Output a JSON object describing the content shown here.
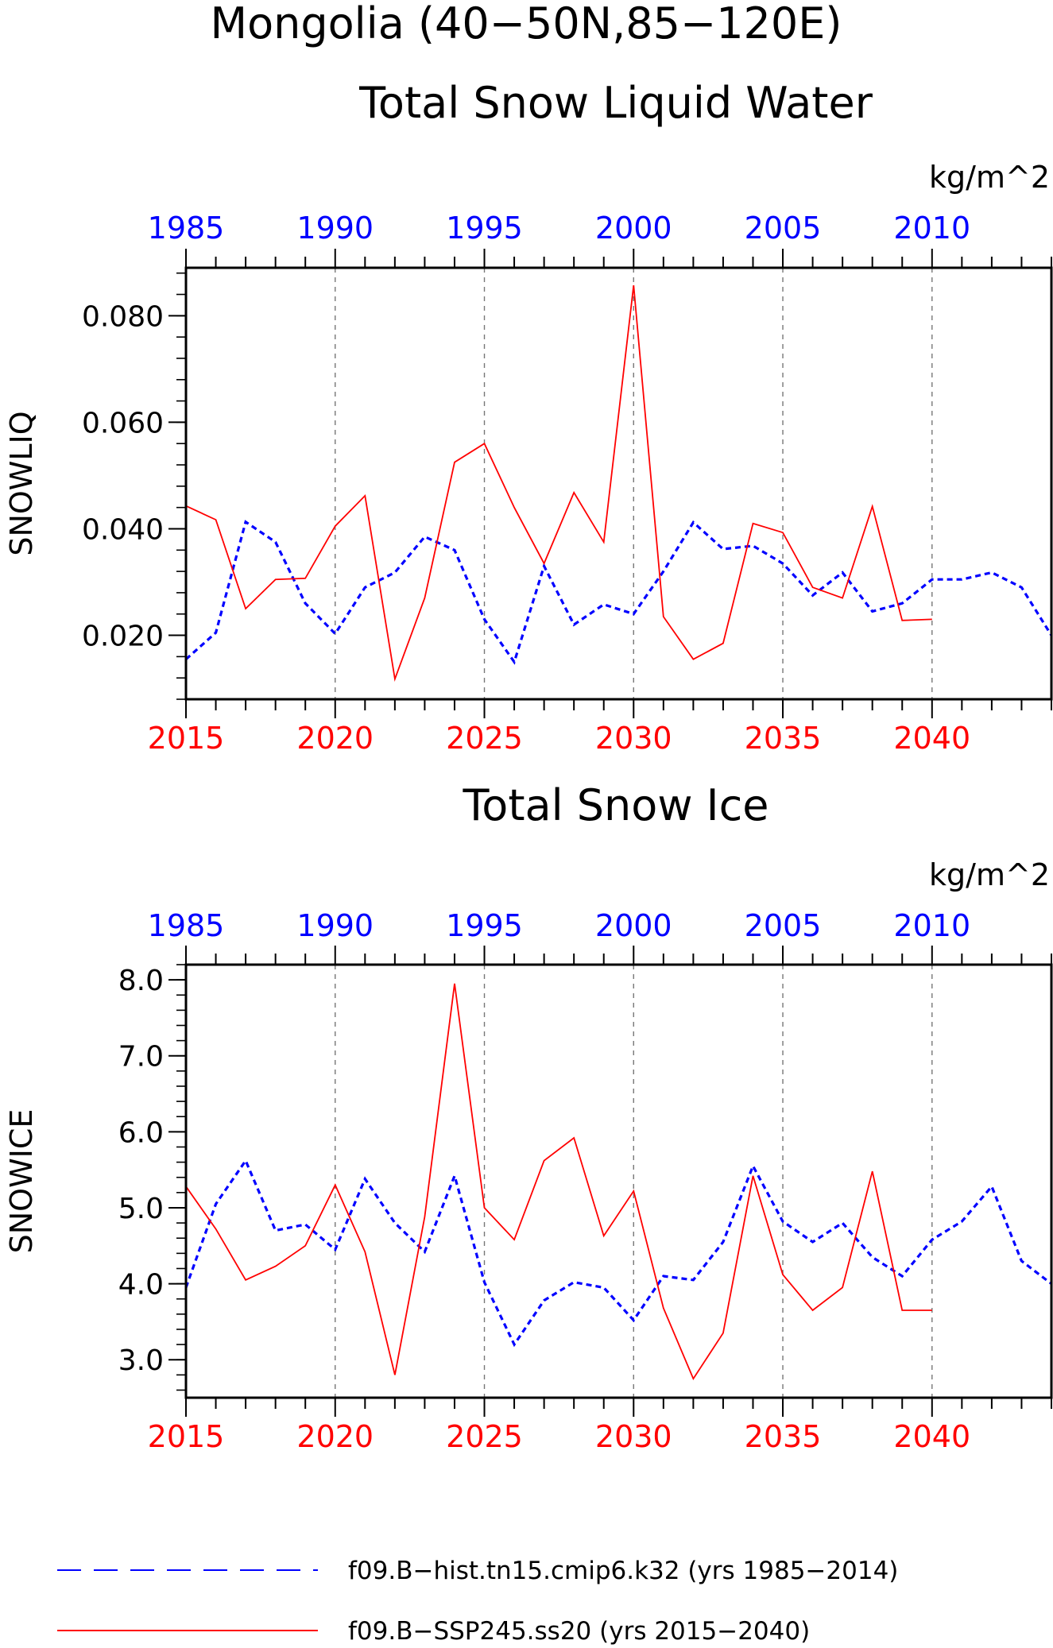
{
  "figure": {
    "title_line1": "Mongolia (40−50N,85−120E)",
    "legend": [
      {
        "label": "f09.B−hist.tn15.cmip6.k32 (yrs 1985−2014)",
        "color": "#0000ff",
        "style": "dashed"
      },
      {
        "label": "f09.B−SSP245.ss20 (yrs 2015−2040)",
        "color": "#ff0000",
        "style": "solid"
      }
    ]
  },
  "chart_data": [
    {
      "type": "line",
      "title": "Total Snow Liquid Water",
      "units": "kg/m^2",
      "ylabel": "SNOWLIQ",
      "ylim": [
        0.008,
        0.089
      ],
      "yticks": [
        0.02,
        0.04,
        0.06,
        0.08
      ],
      "ytick_labels": [
        "0.020",
        "0.040",
        "0.060",
        "0.080"
      ],
      "y_minor_step": 0.004,
      "x_bottom": {
        "range": [
          2015,
          2044
        ],
        "tick_labels": [
          "2015",
          "2020",
          "2025",
          "2030",
          "2035",
          "2040"
        ],
        "color": "#ff0000"
      },
      "x_top": {
        "range": [
          1985,
          2014
        ],
        "tick_labels": [
          "1985",
          "1990",
          "1995",
          "2000",
          "2005",
          "2010"
        ],
        "color": "#0000ff"
      },
      "grid": "vertical dashed at major x ticks",
      "series": [
        {
          "name": "f09.B−hist.tn15.cmip6.k32 (yrs 1985−2014)",
          "color": "#0000ff",
          "style": "dashed",
          "x": [
            1985,
            1986,
            1987,
            1988,
            1989,
            1990,
            1991,
            1992,
            1993,
            1994,
            1995,
            1996,
            1997,
            1998,
            1999,
            2000,
            2001,
            2002,
            2003,
            2004,
            2005,
            2006,
            2007,
            2008,
            2009,
            2010,
            2011,
            2012,
            2013,
            2014
          ],
          "values": [
            0.0155,
            0.0205,
            0.0413,
            0.0375,
            0.026,
            0.0203,
            0.029,
            0.0318,
            0.0385,
            0.036,
            0.023,
            0.015,
            0.033,
            0.022,
            0.0258,
            0.024,
            0.032,
            0.0412,
            0.0362,
            0.0368,
            0.0335,
            0.0275,
            0.0318,
            0.0245,
            0.026,
            0.0305,
            0.0305,
            0.0318,
            0.029,
            0.02
          ]
        },
        {
          "name": "f09.B−SSP245.ss20 (yrs 2015−2040)",
          "color": "#ff0000",
          "style": "solid",
          "x": [
            2015,
            2016,
            2017,
            2018,
            2019,
            2020,
            2021,
            2022,
            2023,
            2024,
            2025,
            2026,
            2027,
            2028,
            2029,
            2030,
            2031,
            2032,
            2033,
            2034,
            2035,
            2036,
            2037,
            2038,
            2039,
            2040
          ],
          "values": [
            0.0443,
            0.0417,
            0.025,
            0.0305,
            0.0307,
            0.0405,
            0.0462,
            0.0118,
            0.027,
            0.0525,
            0.056,
            0.044,
            0.0335,
            0.0468,
            0.0375,
            0.0857,
            0.0235,
            0.0155,
            0.0185,
            0.041,
            0.0393,
            0.029,
            0.027,
            0.0442,
            0.0228,
            0.023
          ]
        }
      ]
    },
    {
      "type": "line",
      "title": "Total Snow Ice",
      "units": "kg/m^2",
      "ylabel": "SNOWICE",
      "ylim": [
        2.5,
        8.2
      ],
      "yticks": [
        3.0,
        4.0,
        5.0,
        6.0,
        7.0,
        8.0
      ],
      "ytick_labels": [
        "3.0",
        "4.0",
        "5.0",
        "6.0",
        "7.0",
        "8.0"
      ],
      "y_minor_step": 0.2,
      "x_bottom": {
        "range": [
          2015,
          2044
        ],
        "tick_labels": [
          "2015",
          "2020",
          "2025",
          "2030",
          "2035",
          "2040"
        ],
        "color": "#ff0000"
      },
      "x_top": {
        "range": [
          1985,
          2014
        ],
        "tick_labels": [
          "1985",
          "1990",
          "1995",
          "2000",
          "2005",
          "2010"
        ],
        "color": "#0000ff"
      },
      "grid": "vertical dashed at major x ticks",
      "series": [
        {
          "name": "f09.B−hist.tn15.cmip6.k32 (yrs 1985−2014)",
          "color": "#0000ff",
          "style": "dashed",
          "x": [
            1985,
            1986,
            1987,
            1988,
            1989,
            1990,
            1991,
            1992,
            1993,
            1994,
            1995,
            1996,
            1997,
            1998,
            1999,
            2000,
            2001,
            2002,
            2003,
            2004,
            2005,
            2006,
            2007,
            2008,
            2009,
            2010,
            2011,
            2012,
            2013,
            2014
          ],
          "values": [
            3.95,
            5.05,
            5.62,
            4.7,
            4.78,
            4.45,
            5.38,
            4.8,
            4.42,
            5.42,
            4.02,
            3.2,
            3.78,
            4.02,
            3.95,
            3.52,
            4.1,
            4.05,
            4.55,
            5.55,
            4.82,
            4.55,
            4.8,
            4.35,
            4.1,
            4.58,
            4.82,
            5.28,
            4.3,
            4.0
          ]
        },
        {
          "name": "f09.B−SSP245.ss20 (yrs 2015−2040)",
          "color": "#ff0000",
          "style": "solid",
          "x": [
            2015,
            2016,
            2017,
            2018,
            2019,
            2020,
            2021,
            2022,
            2023,
            2024,
            2025,
            2026,
            2027,
            2028,
            2029,
            2030,
            2031,
            2032,
            2033,
            2034,
            2035,
            2036,
            2037,
            2038,
            2039,
            2040
          ],
          "values": [
            5.28,
            4.72,
            4.05,
            4.23,
            4.5,
            5.3,
            4.42,
            2.8,
            4.88,
            7.95,
            5.0,
            4.58,
            5.62,
            5.92,
            4.63,
            5.22,
            3.68,
            2.75,
            3.35,
            5.42,
            4.12,
            3.65,
            3.95,
            5.48,
            3.65,
            3.65
          ]
        }
      ]
    }
  ]
}
